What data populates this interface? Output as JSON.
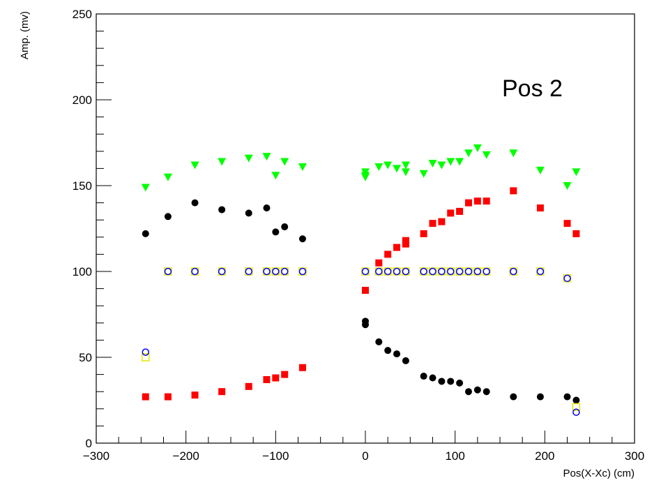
{
  "chart_data": {
    "type": "scatter",
    "title": "",
    "xlabel": "Pos(X-Xc) (cm)",
    "ylabel": "Amp. (mv)",
    "xlim": [
      -300,
      300
    ],
    "ylim": [
      0,
      250
    ],
    "x_ticks": [
      -300,
      -200,
      -100,
      0,
      100,
      200,
      300
    ],
    "x_tick_labels": [
      "−300",
      "−200",
      "−100",
      "0",
      "100",
      "200",
      "300"
    ],
    "y_ticks": [
      0,
      50,
      100,
      150,
      200,
      250
    ],
    "y_tick_labels": [
      "0",
      "50",
      "100",
      "150",
      "200",
      "250"
    ],
    "grid": false,
    "annotation": "Pos 2",
    "series": [
      {
        "marker": "triangle-down",
        "color": "#00ff00",
        "points": [
          [
            -245,
            149
          ],
          [
            -220,
            155
          ],
          [
            -190,
            162
          ],
          [
            -160,
            164
          ],
          [
            -130,
            166
          ],
          [
            -110,
            167
          ],
          [
            -100,
            156
          ],
          [
            -90,
            164
          ],
          [
            -70,
            161
          ],
          [
            0,
            158
          ],
          [
            0,
            156
          ],
          [
            0,
            155
          ],
          [
            15,
            161
          ],
          [
            25,
            162
          ],
          [
            35,
            160
          ],
          [
            45,
            162
          ],
          [
            45,
            158
          ],
          [
            65,
            157
          ],
          [
            75,
            163
          ],
          [
            85,
            162
          ],
          [
            95,
            164
          ],
          [
            105,
            164
          ],
          [
            115,
            169
          ],
          [
            125,
            172
          ],
          [
            135,
            168
          ],
          [
            165,
            169
          ],
          [
            195,
            159
          ],
          [
            225,
            150
          ],
          [
            235,
            158
          ]
        ]
      },
      {
        "marker": "circle-filled",
        "color": "#000000",
        "points": [
          [
            -245,
            122
          ],
          [
            -220,
            132
          ],
          [
            -190,
            140
          ],
          [
            -160,
            136
          ],
          [
            -130,
            134
          ],
          [
            -110,
            137
          ],
          [
            -100,
            123
          ],
          [
            -90,
            126
          ],
          [
            -70,
            119
          ],
          [
            0,
            71
          ],
          [
            0,
            69
          ],
          [
            15,
            59
          ],
          [
            25,
            54
          ],
          [
            35,
            52
          ],
          [
            45,
            48
          ],
          [
            65,
            39
          ],
          [
            75,
            38
          ],
          [
            85,
            36
          ],
          [
            95,
            36
          ],
          [
            105,
            35
          ],
          [
            115,
            30
          ],
          [
            125,
            31
          ],
          [
            135,
            30
          ],
          [
            165,
            27
          ],
          [
            195,
            27
          ],
          [
            225,
            27
          ],
          [
            235,
            25
          ]
        ]
      },
      {
        "marker": "square-filled",
        "color": "#ff0000",
        "points": [
          [
            -245,
            27
          ],
          [
            -220,
            27
          ],
          [
            -190,
            28
          ],
          [
            -160,
            30
          ],
          [
            -130,
            33
          ],
          [
            -110,
            37
          ],
          [
            -100,
            38
          ],
          [
            -90,
            40
          ],
          [
            -70,
            44
          ],
          [
            0,
            89
          ],
          [
            15,
            105
          ],
          [
            25,
            110
          ],
          [
            35,
            114
          ],
          [
            45,
            116
          ],
          [
            45,
            118
          ],
          [
            65,
            122
          ],
          [
            75,
            128
          ],
          [
            85,
            129
          ],
          [
            95,
            134
          ],
          [
            105,
            135
          ],
          [
            115,
            140
          ],
          [
            125,
            141
          ],
          [
            135,
            141
          ],
          [
            165,
            147
          ],
          [
            195,
            137
          ],
          [
            225,
            128
          ],
          [
            235,
            122
          ]
        ]
      },
      {
        "marker": "square-open",
        "color": "#e6e600",
        "points": [
          [
            -245,
            50
          ],
          [
            -220,
            100
          ],
          [
            -190,
            100
          ],
          [
            -160,
            100
          ],
          [
            -130,
            100
          ],
          [
            -110,
            100
          ],
          [
            -100,
            100
          ],
          [
            -90,
            100
          ],
          [
            -70,
            100
          ],
          [
            0,
            100
          ],
          [
            15,
            100
          ],
          [
            25,
            100
          ],
          [
            35,
            100
          ],
          [
            45,
            100
          ],
          [
            65,
            100
          ],
          [
            75,
            100
          ],
          [
            85,
            100
          ],
          [
            95,
            100
          ],
          [
            105,
            100
          ],
          [
            115,
            100
          ],
          [
            125,
            100
          ],
          [
            135,
            100
          ],
          [
            165,
            100
          ],
          [
            195,
            100
          ],
          [
            225,
            96
          ],
          [
            235,
            21
          ]
        ]
      },
      {
        "marker": "circle-open",
        "color": "#0000ff",
        "points": [
          [
            -245,
            53
          ],
          [
            -220,
            100
          ],
          [
            -190,
            100
          ],
          [
            -160,
            100
          ],
          [
            -130,
            100
          ],
          [
            -110,
            100
          ],
          [
            -100,
            100
          ],
          [
            -90,
            100
          ],
          [
            -70,
            100
          ],
          [
            0,
            100
          ],
          [
            15,
            100
          ],
          [
            25,
            100
          ],
          [
            35,
            100
          ],
          [
            45,
            100
          ],
          [
            65,
            100
          ],
          [
            75,
            100
          ],
          [
            85,
            100
          ],
          [
            95,
            100
          ],
          [
            105,
            100
          ],
          [
            115,
            100
          ],
          [
            125,
            100
          ],
          [
            135,
            100
          ],
          [
            165,
            100
          ],
          [
            195,
            100
          ],
          [
            225,
            96
          ],
          [
            235,
            18
          ]
        ]
      }
    ]
  }
}
